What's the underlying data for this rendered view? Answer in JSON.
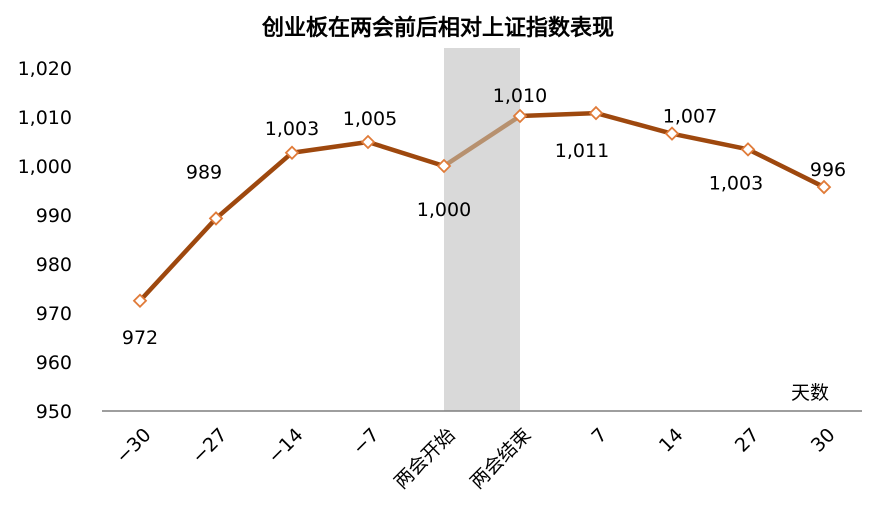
{
  "chart_data": {
    "type": "line",
    "title": "创业板在两会前后相对上证指数表现",
    "xlabel": "天数",
    "ylabel": "",
    "categories": [
      "−30",
      "−27",
      "−14",
      "−7",
      "两会开始",
      "两会结束",
      "7",
      "14",
      "27",
      "30"
    ],
    "values": [
      972.5,
      989.3,
      1002.7,
      1004.9,
      1000.0,
      1010.2,
      1010.8,
      1006.6,
      1003.4,
      995.7
    ],
    "data_labels": [
      "972",
      "989",
      "1,003",
      "1,005",
      "1,000",
      "1,010",
      "1,011",
      "1,007",
      "1,003",
      "996"
    ],
    "ylim": [
      950,
      1020
    ],
    "yticks": [
      950,
      960,
      970,
      980,
      990,
      1000,
      1010,
      1020
    ],
    "ytick_labels": [
      "950",
      "960",
      "970",
      "980",
      "990",
      "1,000",
      "1,010",
      "1,020"
    ],
    "highlight_band": [
      "两会开始",
      "两会结束"
    ],
    "grid": false,
    "legend": "none",
    "colors": {
      "line": "#9E480E",
      "line_highlight": "#B7916F",
      "marker_fill": "#FFFFFF",
      "marker_stroke": "#E07B39",
      "band": "#D9D9D9",
      "axis": "#7F7F7F"
    }
  }
}
